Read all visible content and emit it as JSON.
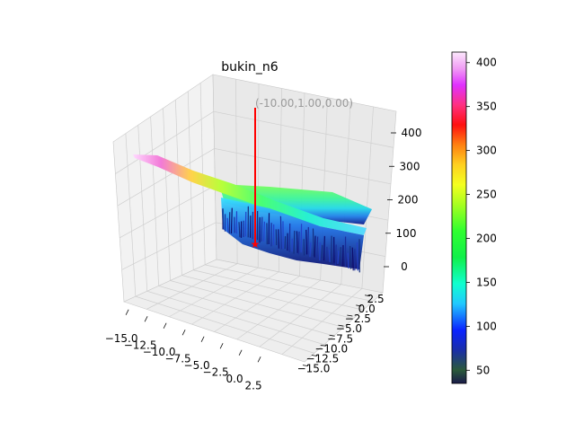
{
  "chart_data": {
    "type": "surface3d",
    "title": "bukin_n6",
    "function": "bukin_n6",
    "x_range": [
      -15.0,
      5.0
    ],
    "y_range": [
      -15.0,
      5.0
    ],
    "x_ticks": [
      "−15.0",
      "−12.5",
      "−10.0",
      "−7.5",
      "−5.0",
      "−2.5",
      "0.0",
      "2.5"
    ],
    "y_ticks": [
      "−15.0",
      "−12.5",
      "−10.0",
      "−7.5",
      "−5.0",
      "−2.5",
      "0.0",
      "2.5"
    ],
    "z_ticks": [
      "0",
      "100",
      "200",
      "300",
      "400"
    ],
    "z_range": [
      0,
      430
    ],
    "minimum": {
      "x": -10.0,
      "y": 1.0,
      "z": 0.0,
      "label": "(-10.00,1.00,0.00)"
    },
    "colorbar": {
      "ticks": [
        "50",
        "100",
        "150",
        "200",
        "250",
        "300",
        "350",
        "400"
      ],
      "range": [
        35,
        412
      ],
      "colormap": "gist_ncar"
    },
    "grid": true
  }
}
